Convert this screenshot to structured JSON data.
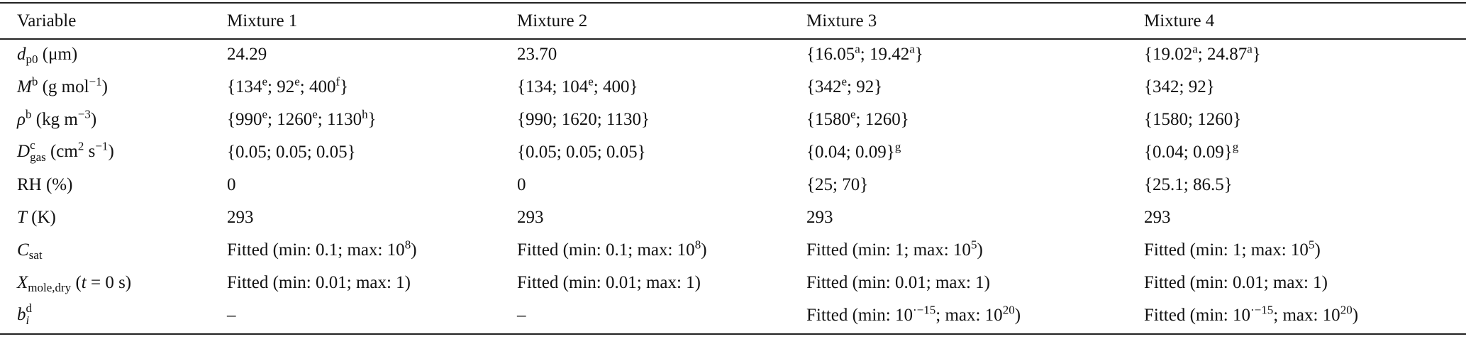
{
  "table": {
    "header": [
      "Variable",
      "Mixture 1",
      "Mixture 2",
      "Mixture 3",
      "Mixture 4"
    ],
    "rows": [
      [
        [
          {
            "i": "d"
          },
          {
            "sub": "p0"
          },
          " (μm)"
        ],
        "24.29",
        "23.70",
        [
          "{16.05",
          {
            "sup": "a"
          },
          "; 19.42",
          {
            "sup": "a"
          },
          "}"
        ],
        [
          "{19.02",
          {
            "sup": "a"
          },
          "; 24.87",
          {
            "sup": "a"
          },
          "}"
        ]
      ],
      [
        [
          {
            "i": "M"
          },
          {
            "sup": "b"
          },
          " (g mol",
          {
            "sup": "−1"
          },
          ")"
        ],
        [
          "{134",
          {
            "sup": "e"
          },
          "; 92",
          {
            "sup": "e"
          },
          "; 400",
          {
            "sup": "f"
          },
          "}"
        ],
        [
          "{134; 104",
          {
            "sup": "e"
          },
          "; 400}"
        ],
        [
          "{342",
          {
            "sup": "e"
          },
          "; 92}"
        ],
        "{342; 92}"
      ],
      [
        [
          {
            "i": "ρ"
          },
          {
            "sup": "b"
          },
          " (kg m",
          {
            "sup": "−3"
          },
          ")"
        ],
        [
          "{990",
          {
            "sup": "e"
          },
          "; 1260",
          {
            "sup": "e"
          },
          "; 1130",
          {
            "sup": "h"
          },
          "}"
        ],
        "{990; 1620; 1130}",
        [
          "{1580",
          {
            "sup": "e"
          },
          "; 1260}"
        ],
        "{1580; 1260}"
      ],
      [
        [
          {
            "i": "D"
          },
          {
            "sub": "gas",
            "sup": "c"
          },
          " (cm",
          {
            "sup": "2"
          },
          " s",
          {
            "sup": "−1"
          },
          ")"
        ],
        "{0.05; 0.05; 0.05}",
        "{0.05; 0.05; 0.05}",
        [
          "{0.04; 0.09}",
          {
            "sup": "g"
          }
        ],
        [
          "{0.04; 0.09}",
          {
            "sup": "g"
          }
        ]
      ],
      [
        "RH (%)",
        "0",
        "0",
        "{25; 70}",
        "{25.1; 86.5}"
      ],
      [
        [
          {
            "i": "T"
          },
          " (K)"
        ],
        "293",
        "293",
        "293",
        "293"
      ],
      [
        [
          {
            "i": "C"
          },
          {
            "sub": "sat"
          }
        ],
        [
          "Fitted (min: 0.1; max: 10",
          {
            "sup": "8"
          },
          ")"
        ],
        [
          "Fitted (min: 0.1; max: 10",
          {
            "sup": "8"
          },
          ")"
        ],
        [
          "Fitted (min: 1; max: 10",
          {
            "sup": "5"
          },
          ")"
        ],
        [
          "Fitted (min: 1; max: 10",
          {
            "sup": "5"
          },
          ")"
        ]
      ],
      [
        [
          {
            "i": "X"
          },
          {
            "sub": "mole,dry"
          },
          " (",
          {
            "i": "t"
          },
          " = 0 s)"
        ],
        "Fitted (min: 0.01; max: 1)",
        "Fitted (min: 0.01; max: 1)",
        "Fitted (min: 0.01; max: 1)",
        "Fitted (min: 0.01; max: 1)"
      ],
      [
        [
          {
            "i": "b"
          },
          {
            "sub": "i",
            "sup": "d"
          }
        ],
        "–",
        "–",
        [
          "Fitted (min: 10",
          {
            "sup": "·−15"
          },
          "; max: 10",
          {
            "sup": "20"
          },
          ")"
        ],
        [
          "Fitted (min: 10",
          {
            "sup": "·−15"
          },
          "; max: 10",
          {
            "sup": "20"
          },
          ")"
        ]
      ]
    ]
  }
}
